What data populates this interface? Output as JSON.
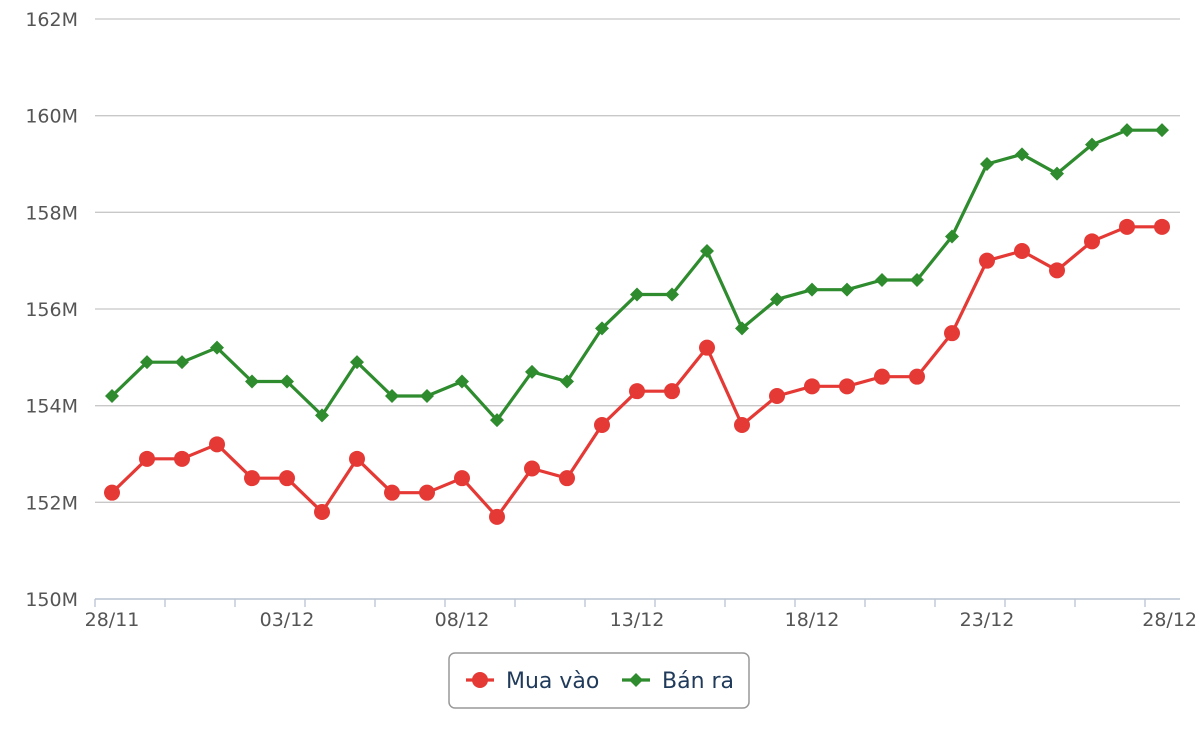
{
  "chart_data": {
    "type": "line",
    "title": "",
    "xlabel": "",
    "ylabel": "",
    "x_tick_labels": [
      "28/11",
      "03/12",
      "08/12",
      "13/12",
      "18/12",
      "23/12",
      "28/12"
    ],
    "y_tick_labels": [
      "150M",
      "152M",
      "154M",
      "156M",
      "158M",
      "160M",
      "162M"
    ],
    "ylim": [
      150,
      162
    ],
    "y_unit": "M",
    "grid": true,
    "legend_position": "bottom-center",
    "categories": [
      "28/11",
      "29/11",
      "30/11",
      "01/12",
      "02/12",
      "03/12",
      "04/12",
      "05/12",
      "06/12",
      "07/12",
      "08/12",
      "09/12",
      "10/12",
      "11/12",
      "12/12",
      "13/12",
      "14/12",
      "15/12",
      "16/12",
      "17/12",
      "18/12",
      "19/12",
      "20/12",
      "21/12",
      "22/12",
      "23/12",
      "24/12",
      "25/12",
      "26/12",
      "27/12",
      "28/12"
    ],
    "series": [
      {
        "name": "Mua vào",
        "color": "#e53935",
        "marker": "circle",
        "values": [
          152.2,
          152.9,
          152.9,
          153.2,
          152.5,
          152.5,
          151.8,
          152.9,
          152.2,
          152.2,
          152.5,
          151.7,
          152.7,
          152.5,
          153.6,
          154.3,
          154.3,
          155.2,
          153.6,
          154.2,
          154.4,
          154.4,
          154.6,
          154.6,
          155.5,
          157.0,
          157.2,
          156.8,
          157.4,
          157.7,
          157.7
        ]
      },
      {
        "name": "Bán ra",
        "color": "#2e8b2e",
        "marker": "diamond",
        "values": [
          154.2,
          154.9,
          154.9,
          155.2,
          154.5,
          154.5,
          153.8,
          154.9,
          154.2,
          154.2,
          154.5,
          153.7,
          154.7,
          154.5,
          155.6,
          156.3,
          156.3,
          157.2,
          155.6,
          156.2,
          156.4,
          156.4,
          156.6,
          156.6,
          157.5,
          159.0,
          159.2,
          158.8,
          159.4,
          159.7,
          159.7
        ]
      }
    ]
  }
}
